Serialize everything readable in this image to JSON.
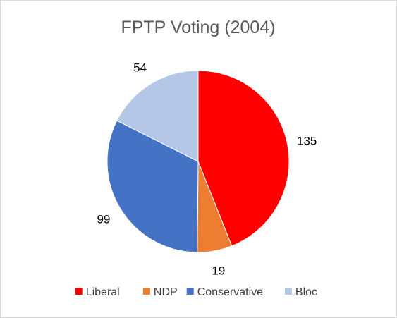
{
  "chart_data": {
    "type": "pie",
    "title": "FPTP Voting (2004)",
    "categories": [
      "Liberal",
      "NDP",
      "Conservative",
      "Bloc"
    ],
    "values": [
      135,
      19,
      99,
      54
    ],
    "colors": [
      "#ff0000",
      "#ed7d31",
      "#4472c4",
      "#b4c7e7"
    ],
    "legend_position": "bottom",
    "data_labels": "values shown outside each slice"
  }
}
